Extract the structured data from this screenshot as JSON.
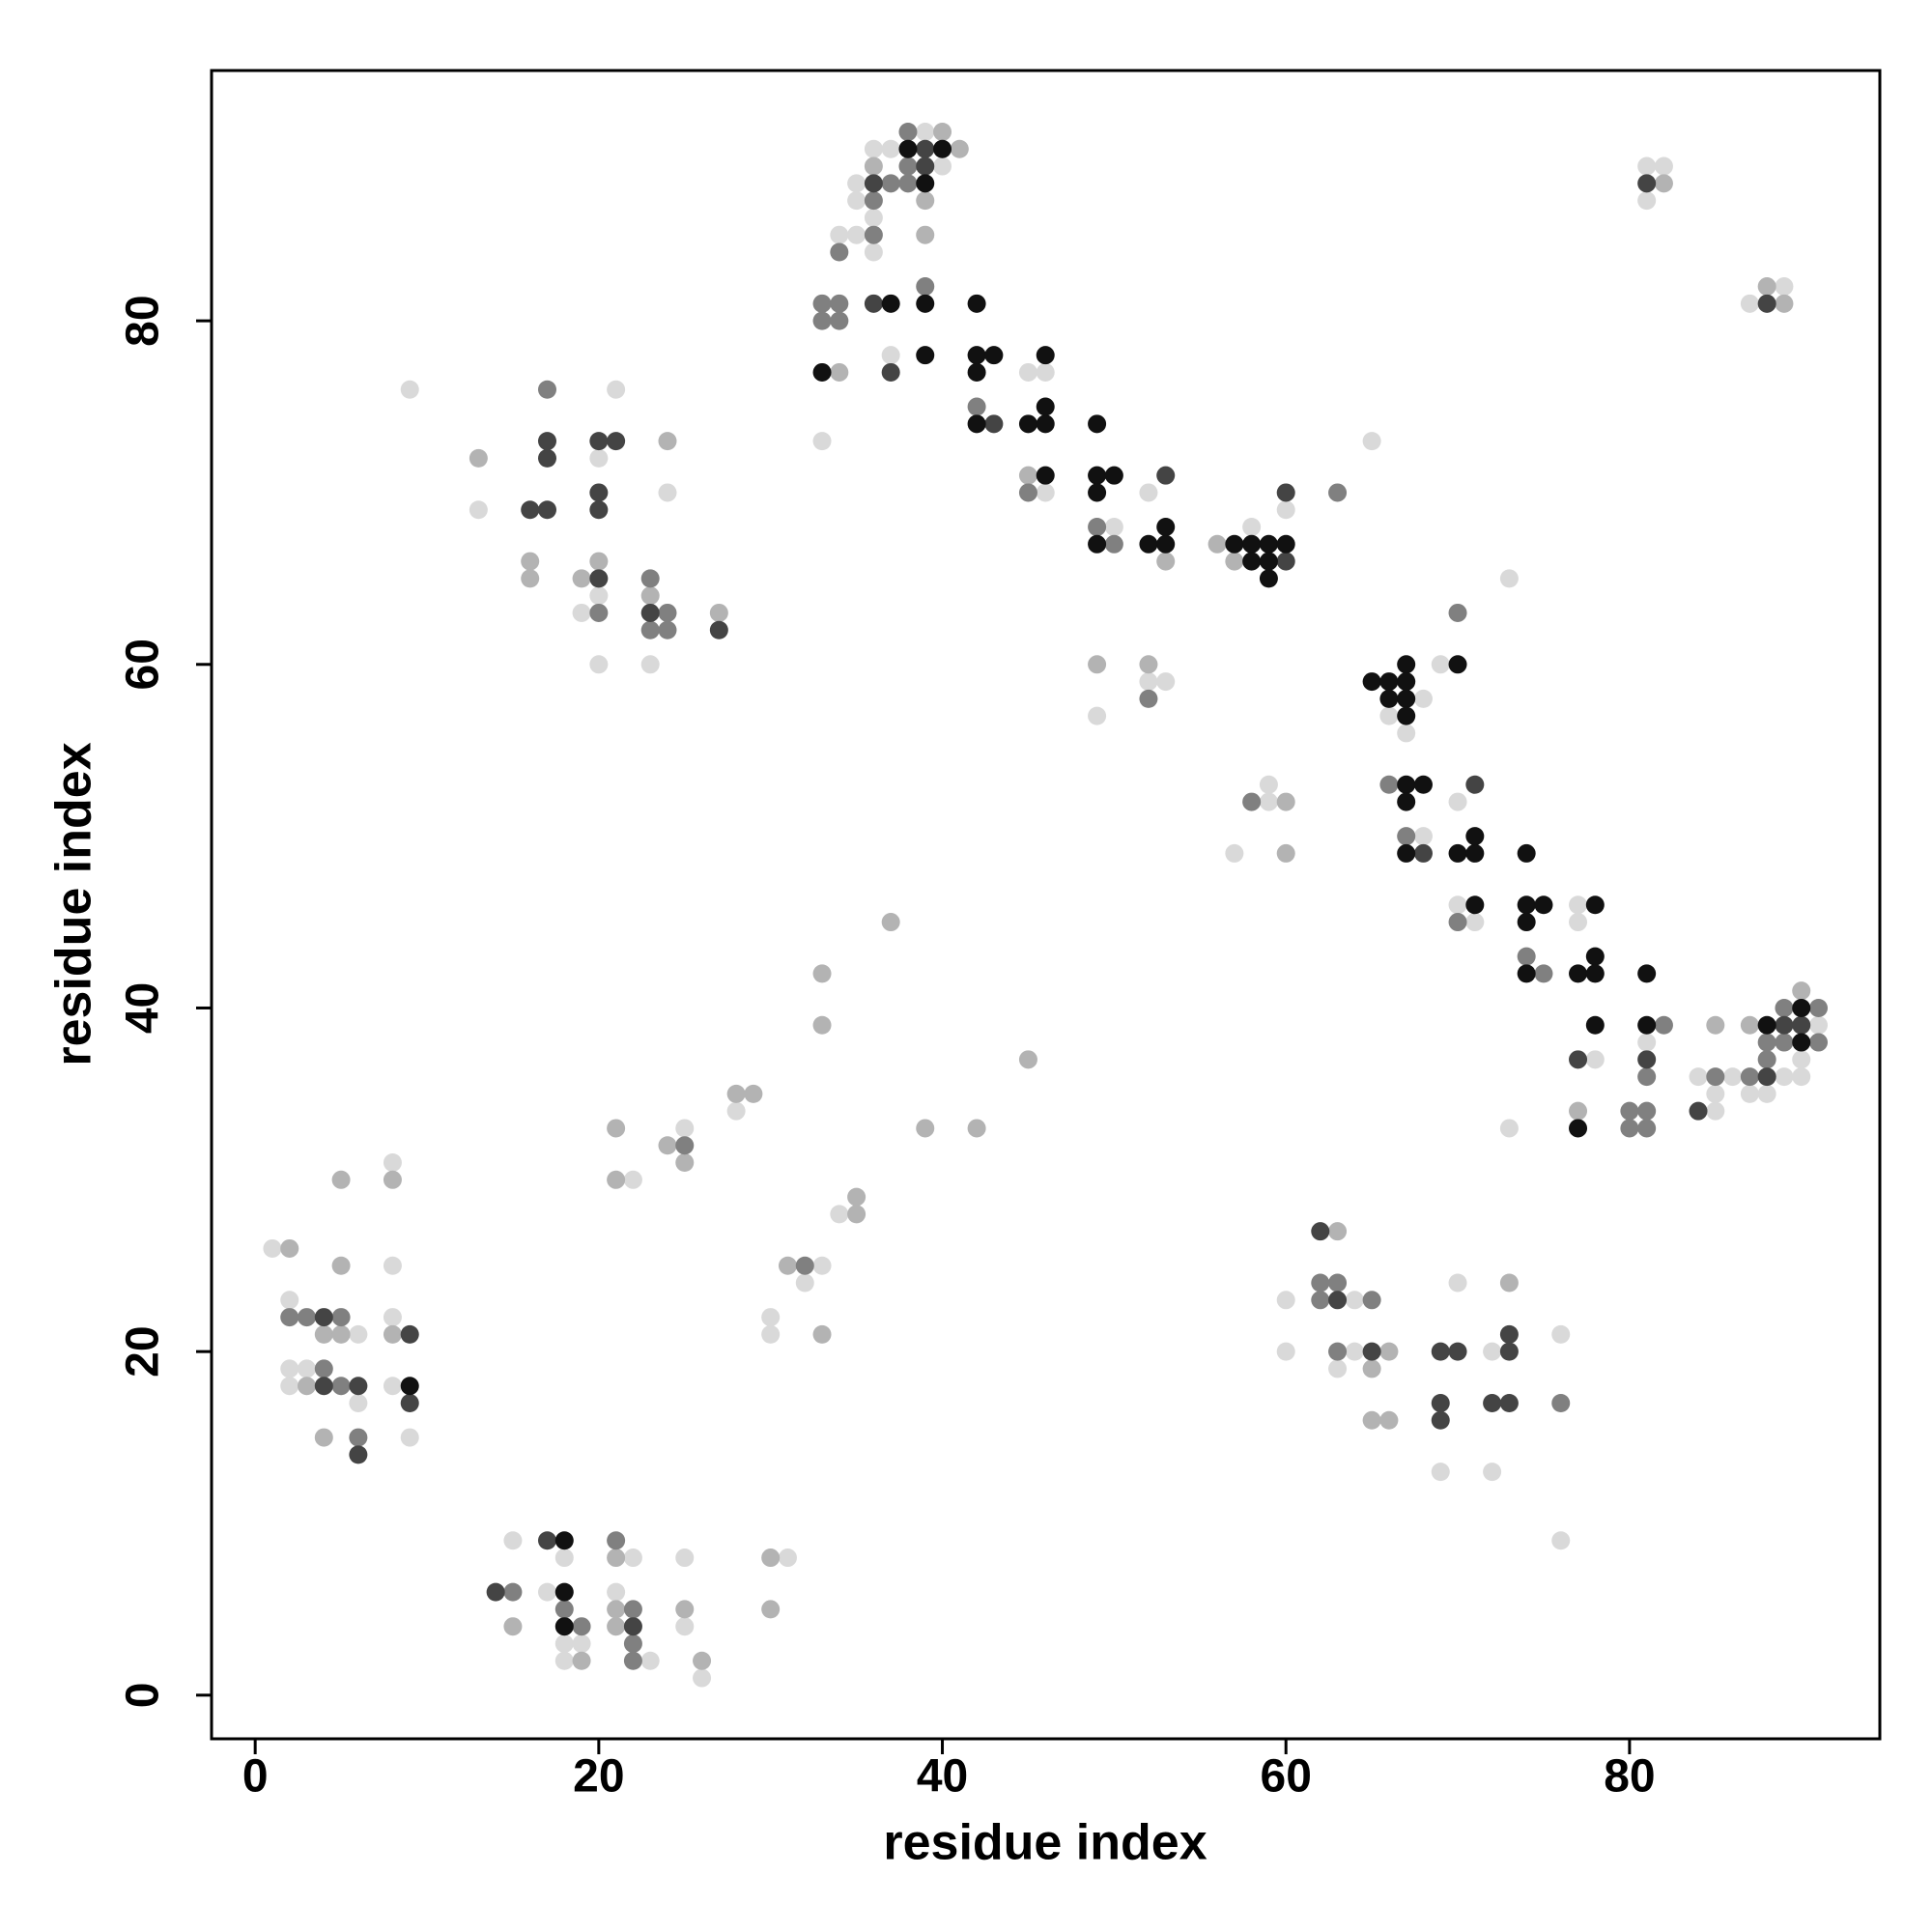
{
  "chart_data": {
    "type": "scatter",
    "xlabel": "residue index",
    "ylabel": "residue index",
    "xlim": [
      -2.54,
      94.57
    ],
    "ylim": [
      -2.54,
      94.57
    ],
    "xticks": [
      0,
      20,
      40,
      60,
      80
    ],
    "yticks": [
      0,
      20,
      40,
      60,
      80
    ],
    "grid": false,
    "series": [
      {
        "color": "#d9d9d9",
        "x": [
          1,
          2,
          2,
          3,
          2,
          6,
          6,
          8,
          8,
          8,
          8,
          9,
          9,
          15,
          17,
          18,
          18,
          19,
          18,
          22,
          21,
          23,
          25,
          25,
          26,
          31,
          30,
          30,
          33,
          32,
          34,
          28,
          25,
          22,
          13,
          19,
          20,
          21,
          20,
          20,
          24,
          23,
          33,
          34,
          35,
          35,
          35,
          36,
          36,
          36,
          37,
          39,
          40,
          37,
          45,
          46,
          46,
          50,
          52,
          49,
          52,
          53,
          58,
          60,
          65,
          59,
          59,
          57,
          60,
          60,
          66,
          67,
          68,
          69,
          73,
          70,
          68,
          70,
          71,
          77,
          77,
          78,
          73,
          81,
          84,
          86,
          85,
          85,
          91,
          87,
          88,
          90,
          89,
          90,
          81,
          82,
          81,
          87,
          89,
          64,
          64,
          63,
          70,
          69,
          72,
          72,
          76,
          76
        ],
        "y": [
          26,
          23,
          19,
          19,
          18,
          21,
          17,
          31,
          25,
          22,
          18,
          15,
          76,
          9,
          6,
          8,
          3,
          3,
          2,
          8,
          6,
          2,
          8,
          4,
          1,
          8,
          22,
          21,
          25,
          24,
          28,
          34,
          33,
          30,
          69,
          63,
          72,
          76,
          64,
          60,
          70,
          60,
          73,
          85,
          85,
          87,
          88,
          84,
          86,
          90,
          90,
          91,
          89,
          78,
          77,
          77,
          70,
          68,
          70,
          57,
          59,
          59,
          68,
          69,
          73,
          53,
          52,
          49,
          23,
          20,
          57,
          56,
          58,
          60,
          65,
          52,
          50,
          46,
          45,
          46,
          45,
          37,
          33,
          38,
          36,
          36,
          34,
          35,
          39,
          35,
          35,
          37,
          36,
          36,
          89,
          89,
          87,
          81,
          82,
          23,
          20,
          19,
          24,
          13,
          13,
          20,
          21,
          9
        ]
      },
      {
        "color": "#b3b3b3",
        "x": [
          2,
          5,
          5,
          4,
          5,
          3,
          4,
          8,
          8,
          15,
          19,
          21,
          21,
          21,
          25,
          26,
          30,
          30,
          31,
          33,
          35,
          35,
          28,
          29,
          24,
          25,
          21,
          21,
          33,
          33,
          37,
          39,
          42,
          45,
          13,
          16,
          16,
          19,
          20,
          23,
          24,
          27,
          36,
          39,
          40,
          41,
          39,
          45,
          53,
          49,
          52,
          56,
          57,
          60,
          60,
          77,
          85,
          87,
          90,
          82,
          88,
          89,
          63,
          65,
          65,
          66,
          66,
          73,
          34
        ],
        "y": [
          26,
          25,
          30,
          21,
          21,
          18,
          15,
          30,
          21,
          4,
          2,
          8,
          5,
          4,
          5,
          2,
          8,
          5,
          25,
          21,
          28,
          29,
          35,
          35,
          32,
          31,
          33,
          30,
          42,
          39,
          45,
          33,
          33,
          37,
          72,
          66,
          65,
          65,
          66,
          64,
          73,
          63,
          89,
          85,
          91,
          90,
          87,
          71,
          66,
          60,
          60,
          67,
          66,
          52,
          49,
          34,
          39,
          39,
          41,
          88,
          82,
          81,
          27,
          19,
          16,
          16,
          20,
          24,
          77
        ]
      },
      {
        "color": "#808080",
        "x": [
          2,
          3,
          5,
          4,
          5,
          6,
          15,
          18,
          19,
          21,
          22,
          22,
          22,
          25,
          32,
          17,
          20,
          23,
          23,
          24,
          24,
          33,
          34,
          33,
          34,
          34,
          36,
          36,
          37,
          38,
          38,
          38,
          39,
          42,
          45,
          49,
          50,
          52,
          63,
          58,
          70,
          66,
          67,
          70,
          74,
          75,
          82,
          81,
          80,
          81,
          80,
          81,
          85,
          87,
          88,
          89,
          91,
          88,
          89,
          91,
          62,
          63,
          62,
          65,
          63,
          76
        ],
        "y": [
          22,
          22,
          22,
          19,
          18,
          15,
          6,
          5,
          4,
          9,
          5,
          3,
          2,
          32,
          25,
          76,
          63,
          65,
          62,
          63,
          62,
          81,
          81,
          80,
          80,
          84,
          85,
          87,
          88,
          91,
          89,
          88,
          82,
          75,
          70,
          68,
          67,
          58,
          70,
          52,
          63,
          53,
          50,
          45,
          43,
          42,
          39,
          36,
          34,
          34,
          33,
          33,
          36,
          36,
          38,
          38,
          38,
          37,
          40,
          40,
          24,
          24,
          23,
          23,
          20,
          17
        ]
      },
      {
        "color": "#444444",
        "x": [
          4,
          4,
          6,
          6,
          9,
          9,
          14,
          17,
          22,
          16,
          17,
          17,
          17,
          20,
          21,
          20,
          20,
          20,
          23,
          27,
          36,
          39,
          39,
          36,
          37,
          43,
          53,
          60,
          60,
          71,
          68,
          77,
          81,
          88,
          84,
          89,
          90,
          81,
          88,
          62,
          63,
          65,
          69,
          70,
          69,
          69,
          73,
          73,
          72,
          73
        ],
        "y": [
          22,
          18,
          18,
          14,
          21,
          17,
          6,
          9,
          4,
          69,
          69,
          73,
          72,
          73,
          73,
          70,
          69,
          65,
          63,
          62,
          88,
          90,
          89,
          81,
          77,
          74,
          71,
          66,
          70,
          53,
          49,
          37,
          37,
          36,
          34,
          39,
          39,
          88,
          81,
          27,
          23,
          20,
          20,
          20,
          17,
          16,
          21,
          20,
          17,
          17
        ]
      },
      {
        "color": "#111111",
        "x": [
          9,
          18,
          18,
          18,
          33,
          38,
          39,
          40,
          37,
          39,
          39,
          42,
          42,
          43,
          42,
          42,
          46,
          45,
          46,
          46,
          46,
          49,
          49,
          50,
          49,
          49,
          52,
          53,
          53,
          57,
          58,
          59,
          60,
          58,
          59,
          59,
          65,
          66,
          67,
          67,
          66,
          67,
          67,
          70,
          67,
          68,
          67,
          67,
          70,
          71,
          71,
          71,
          74,
          74,
          75,
          74,
          74,
          78,
          78,
          77,
          78,
          78,
          77,
          81,
          81,
          88,
          90,
          90
        ],
        "y": [
          18,
          9,
          6,
          4,
          77,
          90,
          88,
          90,
          81,
          81,
          78,
          81,
          78,
          78,
          77,
          74,
          78,
          74,
          74,
          75,
          71,
          74,
          71,
          71,
          70,
          67,
          67,
          67,
          68,
          67,
          67,
          67,
          67,
          66,
          66,
          65,
          59,
          59,
          60,
          59,
          58,
          58,
          57,
          60,
          53,
          53,
          52,
          49,
          49,
          49,
          50,
          46,
          49,
          46,
          46,
          45,
          42,
          46,
          43,
          42,
          42,
          39,
          33,
          42,
          39,
          39,
          38,
          40
        ]
      }
    ]
  }
}
